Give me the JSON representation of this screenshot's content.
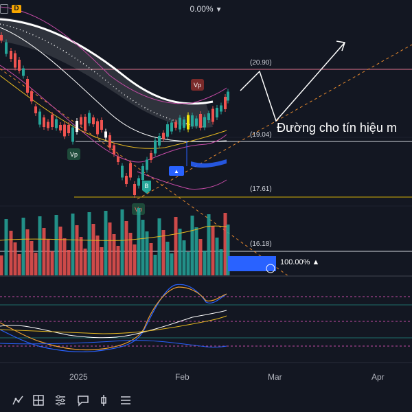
{
  "header": {
    "symbol_badge": "D",
    "change_percent": "0.00%",
    "change_arrow": "▼"
  },
  "price_levels": {
    "upper": "(20.90)",
    "mid": "(19.04)",
    "lower": "(17.61)",
    "bottom": "(16.18)"
  },
  "annotation": "Đường cho tín hiệu m",
  "markers": {
    "vp_top": "Vp",
    "vp_left": "Vp",
    "vp_bottom": "Vp",
    "buy": "B",
    "sell_tag": "▲"
  },
  "percent_bar": {
    "label": "100.00%",
    "arrow": "▲"
  },
  "x_axis": {
    "labels": [
      "2025",
      "Feb",
      "Mar",
      "Apr"
    ]
  },
  "toolbar": {
    "tools": [
      "indicators-icon",
      "chart-layout-icon",
      "sliders-icon",
      "comment-icon",
      "bar-style-icon",
      "menu-icon"
    ]
  },
  "colors": {
    "background": "#131722",
    "up_candle": "#26a69a",
    "down_candle": "#ef5350",
    "highlight_candle": "#f5e50a",
    "bollinger": "#c64ba7",
    "ema_gold": "#e6b820",
    "blue_band": "#2962ff",
    "level_upper": "#e0708a",
    "level_lower": "#d4b106"
  }
}
